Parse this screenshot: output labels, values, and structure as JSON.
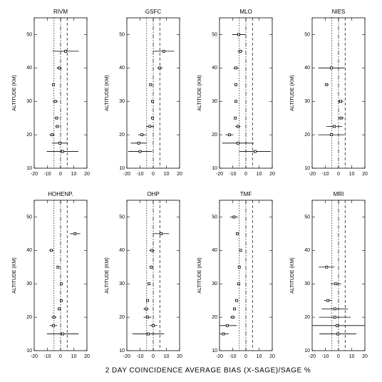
{
  "xlabel": "2 DAY COINCIDENCE AVERAGE BIAS (X-SAGE)/SAGE %",
  "chart_data": [
    {
      "type": "errorbar",
      "title": "RIVM",
      "ylabel": "ALTITUDE (KM)",
      "xlim": [
        -20,
        20
      ],
      "ylim": [
        10,
        55
      ],
      "xticks": [
        -20,
        -10,
        0,
        10,
        20
      ],
      "yticks": [
        10,
        20,
        30,
        40,
        50
      ],
      "reference_lines": [
        -5,
        0,
        5
      ],
      "y": [
        45,
        40,
        35,
        30,
        25,
        22.5,
        20,
        17.5,
        15
      ],
      "x": [
        3.8,
        -1,
        -5.4,
        -4,
        -3,
        -2.5,
        -6.5,
        -0.5,
        1.5
      ],
      "xerr": [
        10,
        2,
        1,
        2,
        1.5,
        1.5,
        2,
        6,
        12
      ]
    },
    {
      "type": "errorbar",
      "title": "GSFC",
      "ylabel": "ALTITUDE (KM)",
      "xlim": [
        -20,
        20
      ],
      "ylim": [
        10,
        55
      ],
      "xticks": [
        -20,
        -10,
        0,
        10,
        20
      ],
      "yticks": [
        10,
        20,
        30,
        40,
        50
      ],
      "reference_lines": [
        -5,
        0,
        5
      ],
      "y": [
        45,
        40,
        35,
        30,
        25,
        22.5,
        20,
        17.5,
        15
      ],
      "x": [
        8,
        5,
        -2,
        -0.5,
        -0.5,
        -2.5,
        -8.5,
        -11,
        -10
      ],
      "xerr": [
        8,
        2,
        1,
        1,
        1,
        3,
        3,
        6,
        9
      ]
    },
    {
      "type": "errorbar",
      "title": "MLO",
      "ylabel": "ALTITUDE (KM)",
      "xlim": [
        -20,
        20
      ],
      "ylim": [
        10,
        55
      ],
      "xticks": [
        -20,
        -10,
        0,
        10,
        20
      ],
      "yticks": [
        10,
        20,
        30,
        40,
        50
      ],
      "reference_lines": [
        -5,
        0,
        5
      ],
      "y": [
        50,
        45,
        40,
        35,
        30,
        25,
        22.5,
        20,
        17.5,
        15
      ],
      "x": [
        -5.4,
        -4.3,
        -7.5,
        -7.5,
        -7.5,
        -8,
        -6,
        -12.5,
        -6,
        7
      ],
      "xerr": [
        5,
        2,
        2,
        1,
        1,
        1,
        2,
        3,
        12,
        12
      ]
    },
    {
      "type": "errorbar",
      "title": "NIES",
      "ylabel": "ALTITUDE (KM)",
      "xlim": [
        -20,
        20
      ],
      "ylim": [
        10,
        55
      ],
      "xticks": [
        -20,
        -10,
        0,
        10,
        20
      ],
      "yticks": [
        10,
        20,
        30,
        40,
        50
      ],
      "reference_lines": [
        -5,
        0,
        5
      ],
      "y": [
        40,
        35,
        30,
        25,
        22.5,
        20
      ],
      "x": [
        -5.4,
        -9,
        1.6,
        2,
        -3.2,
        -5.4
      ],
      "xerr": [
        10,
        1.5,
        2,
        2,
        6,
        10
      ]
    },
    {
      "type": "errorbar",
      "title": "HOHENP.",
      "ylabel": "ALTITUDE (KM)",
      "xlim": [
        -20,
        20
      ],
      "ylim": [
        10,
        55
      ],
      "xticks": [
        -20,
        -10,
        0,
        10,
        20
      ],
      "yticks": [
        10,
        20,
        30,
        40,
        50
      ],
      "reference_lines": [
        -5,
        0,
        5
      ],
      "y": [
        45,
        40,
        35,
        30,
        25,
        22.5,
        20,
        17.5,
        15
      ],
      "x": [
        11,
        -7,
        -2,
        0.5,
        0.5,
        -1,
        -5,
        -5.4,
        1.6
      ],
      "xerr": [
        4,
        1.5,
        1,
        1,
        1,
        1,
        2,
        3,
        12
      ]
    },
    {
      "type": "errorbar",
      "title": "OHP",
      "ylabel": "ALTITUDE (KM)",
      "xlim": [
        -20,
        20
      ],
      "ylim": [
        10,
        55
      ],
      "xticks": [
        -20,
        -10,
        0,
        10,
        20
      ],
      "yticks": [
        10,
        20,
        30,
        40,
        50
      ],
      "reference_lines": [
        -5,
        0,
        5
      ],
      "y": [
        45,
        40,
        35,
        30,
        25,
        22.5,
        20,
        17.5,
        15
      ],
      "x": [
        6,
        -1,
        -1.6,
        -3.2,
        -4.3,
        -5.4,
        -4.3,
        0,
        -3.8
      ],
      "xerr": [
        6,
        2,
        1,
        1,
        1,
        2,
        3,
        3,
        12
      ]
    },
    {
      "type": "errorbar",
      "title": "TMF",
      "ylabel": "ALTITUDE (KM)",
      "xlim": [
        -20,
        20
      ],
      "ylim": [
        10,
        55
      ],
      "xticks": [
        -20,
        -10,
        0,
        10,
        20
      ],
      "yticks": [
        10,
        20,
        30,
        40,
        50
      ],
      "reference_lines": [
        -5,
        0,
        5
      ],
      "y": [
        50,
        45,
        40,
        35,
        30,
        25,
        22.5,
        20,
        17.5,
        15
      ],
      "x": [
        -9,
        -6.5,
        -4,
        -5,
        -5.4,
        -7,
        -8.6,
        -10,
        -14,
        -17
      ],
      "xerr": [
        3,
        1,
        1,
        1,
        1,
        1,
        1,
        2,
        7,
        4
      ]
    },
    {
      "type": "errorbar",
      "title": "MRI",
      "ylabel": "ALTITUDE (KM)",
      "xlim": [
        -20,
        20
      ],
      "ylim": [
        10,
        55
      ],
      "xticks": [
        -20,
        -10,
        0,
        10,
        20
      ],
      "yticks": [
        10,
        20,
        30,
        40,
        50
      ],
      "reference_lines": [
        -5,
        0,
        5
      ],
      "y": [
        35,
        30,
        25,
        22.5,
        20,
        17.5,
        15
      ],
      "x": [
        -9,
        -2,
        -8,
        -2.8,
        -2.8,
        -1,
        -0.5
      ],
      "xerr": [
        6,
        4,
        3,
        10,
        12,
        30,
        14
      ]
    }
  ]
}
